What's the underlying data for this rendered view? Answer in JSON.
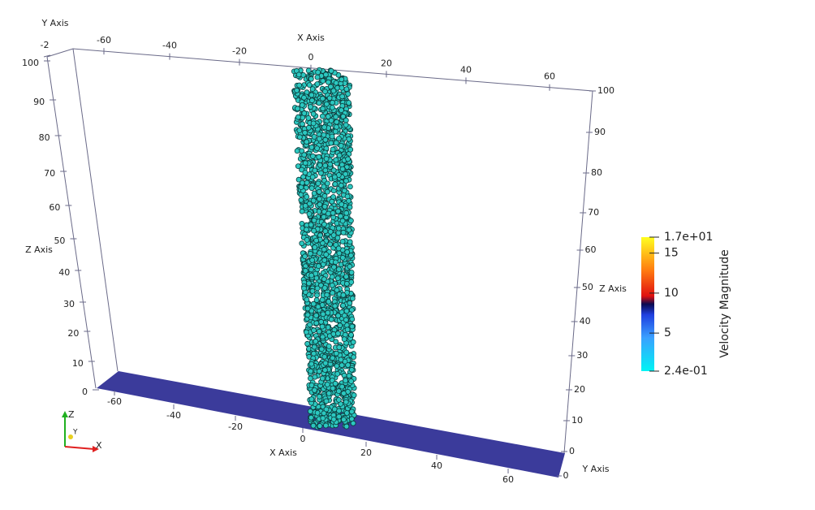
{
  "axes": {
    "x_title": "X Axis",
    "y_title": "Y Axis",
    "z_title": "Z Axis",
    "top_x_ticks": [
      -60,
      -40,
      -20,
      0,
      20,
      40,
      60
    ],
    "bottom_x_ticks": [
      -60,
      -40,
      -20,
      0,
      20,
      40,
      60
    ],
    "left_z_ticks": [
      0,
      10,
      20,
      30,
      40,
      50,
      60,
      70,
      80,
      90,
      100
    ],
    "right_z_ticks": [
      0,
      10,
      20,
      30,
      40,
      50,
      60,
      70,
      80,
      90,
      100
    ],
    "left_y_tick": -2,
    "right_y_tick": 0
  },
  "colorbar": {
    "title": "Velocity Magnitude",
    "range": [
      {
        "value": 0.24,
        "label": "2.4e-01"
      },
      {
        "value": 17,
        "label": "1.7e+01"
      }
    ],
    "ticks": [
      5,
      10,
      15
    ]
  },
  "orientation": {
    "x": "X",
    "y": "Y",
    "z": "Z"
  }
}
